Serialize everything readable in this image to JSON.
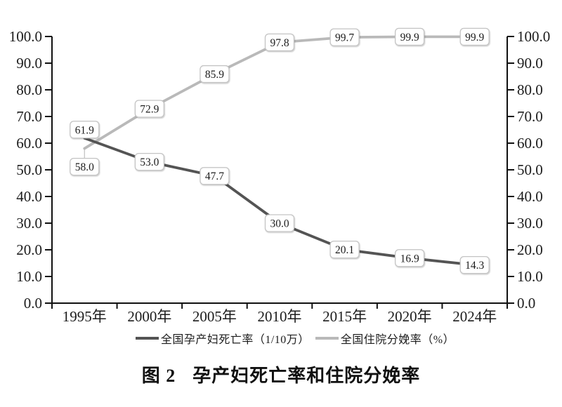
{
  "figure": {
    "caption_prefix": "图 2",
    "caption_text": "孕产妇死亡率和住院分娩率"
  },
  "chart_data": {
    "type": "line",
    "categories": [
      "1995年",
      "2000年",
      "2005年",
      "2010年",
      "2015年",
      "2020年",
      "2024年"
    ],
    "series": [
      {
        "name": "全国孕产妇死亡率（1/10万）",
        "values": [
          61.9,
          53.0,
          47.7,
          30.0,
          20.1,
          16.9,
          14.3
        ],
        "color": "#545454",
        "data_labels": [
          "61.9",
          "53.0",
          "47.7",
          "30.0",
          "20.1",
          "16.9",
          "14.3"
        ]
      },
      {
        "name": "全国住院分娩率（%）",
        "values": [
          58.0,
          72.9,
          85.9,
          97.8,
          99.7,
          99.9,
          99.9
        ],
        "color": "#b9b9b9",
        "data_labels": [
          "58.0",
          "72.9",
          "85.9",
          "97.8",
          "99.7",
          "99.9",
          "99.9"
        ]
      }
    ],
    "title": "图 2　孕产妇死亡率和住院分娩率",
    "xlabel": "",
    "ylabel": "",
    "ylim": [
      0,
      100
    ],
    "ytick_step": 10,
    "ytick_labels": [
      "0.0",
      "10.0",
      "20.0",
      "30.0",
      "40.0",
      "50.0",
      "60.0",
      "70.0",
      "80.0",
      "90.0",
      "100.0"
    ],
    "y_axis_sides": [
      "left",
      "right"
    ],
    "grid": "off",
    "legend_position": "bottom",
    "data_label_boxes": {
      "fill": "#ffffff",
      "border_color": "#c4c4c4"
    },
    "axis_color": "#111111",
    "text_color": "#1c1c1c"
  }
}
